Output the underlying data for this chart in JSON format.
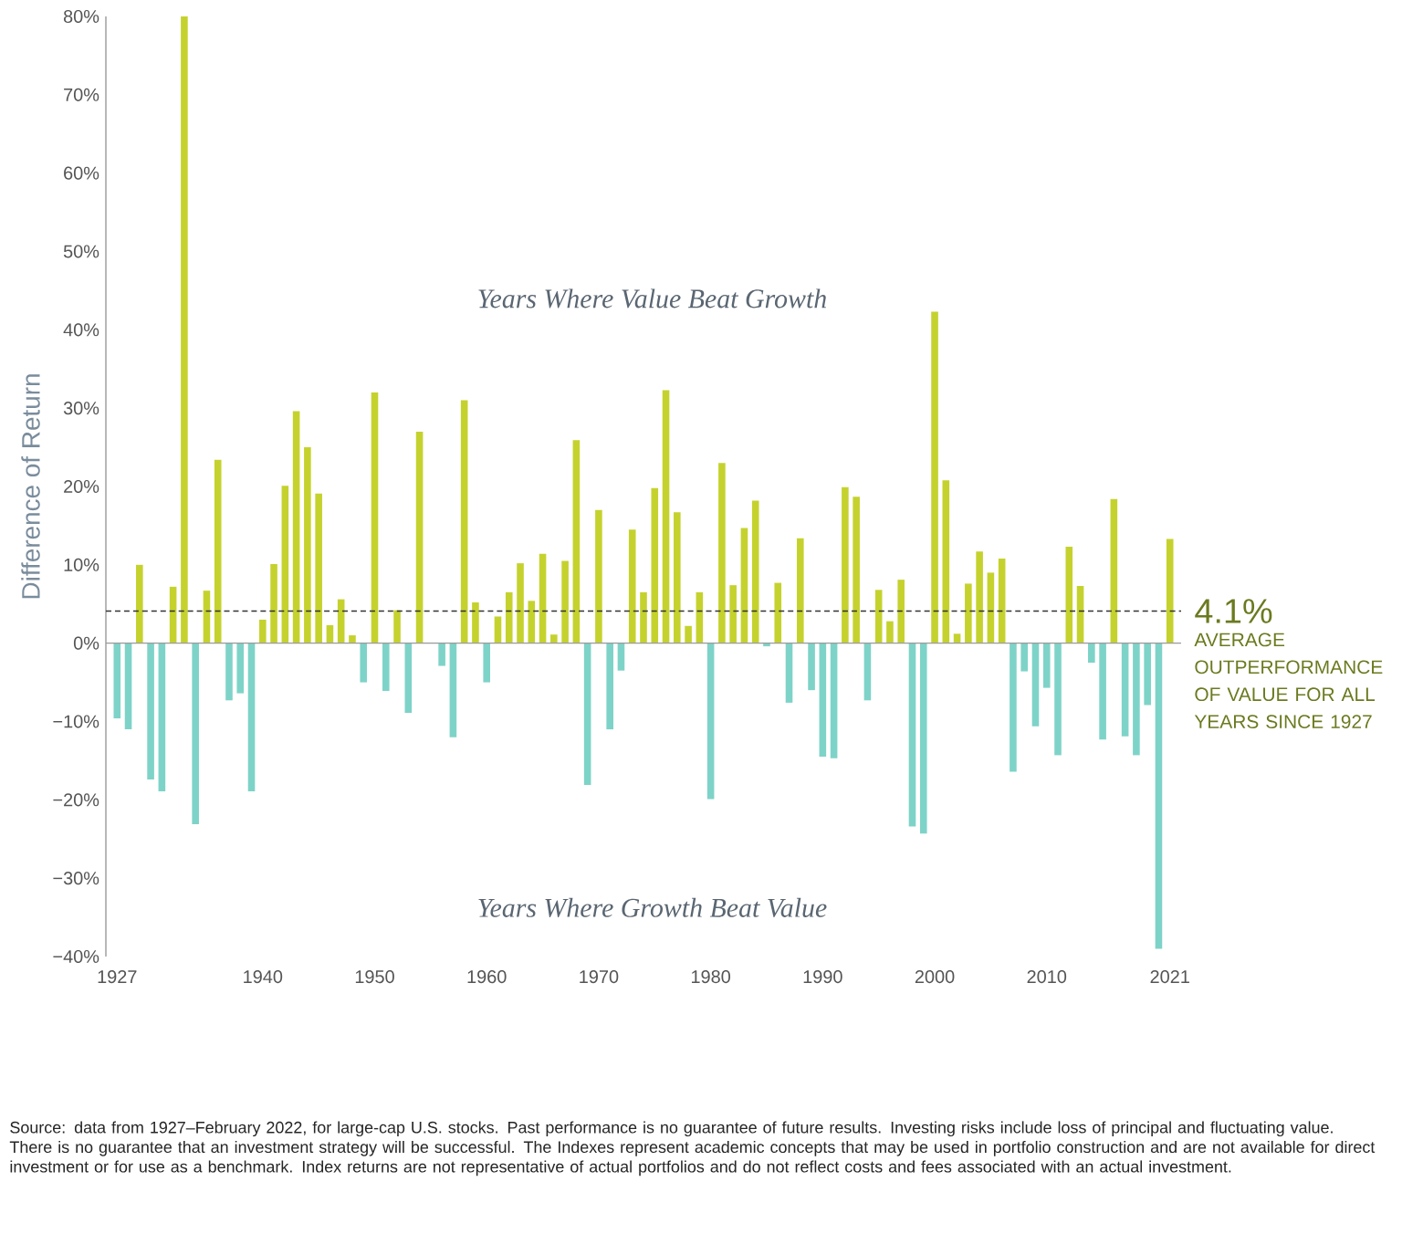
{
  "chart_data": {
    "type": "bar",
    "ylabel": "Difference of Return",
    "x": [
      1927,
      1928,
      1929,
      1930,
      1931,
      1932,
      1933,
      1934,
      1935,
      1936,
      1937,
      1938,
      1939,
      1940,
      1941,
      1942,
      1943,
      1944,
      1945,
      1946,
      1947,
      1948,
      1949,
      1950,
      1951,
      1952,
      1953,
      1954,
      1955,
      1956,
      1957,
      1958,
      1959,
      1960,
      1961,
      1962,
      1963,
      1964,
      1965,
      1966,
      1967,
      1968,
      1969,
      1970,
      1971,
      1972,
      1973,
      1974,
      1975,
      1976,
      1977,
      1978,
      1979,
      1980,
      1981,
      1982,
      1983,
      1984,
      1985,
      1986,
      1987,
      1988,
      1989,
      1990,
      1991,
      1992,
      1993,
      1994,
      1995,
      1996,
      1997,
      1998,
      1999,
      2000,
      2001,
      2002,
      2003,
      2004,
      2005,
      2006,
      2007,
      2008,
      2009,
      2010,
      2011,
      2012,
      2013,
      2014,
      2015,
      2016,
      2017,
      2018,
      2019,
      2020,
      2021
    ],
    "values": [
      -9.6,
      -11.0,
      10.0,
      -17.4,
      -18.9,
      7.2,
      80.0,
      -23.1,
      6.7,
      23.4,
      -7.3,
      -6.4,
      -18.9,
      3.0,
      10.1,
      20.1,
      29.6,
      25.0,
      19.1,
      2.3,
      5.6,
      1.0,
      -5.0,
      32.0,
      -6.1,
      4.2,
      -8.9,
      27.0,
      0,
      -2.9,
      -12.0,
      31.0,
      5.2,
      -5.0,
      3.4,
      6.5,
      10.2,
      5.4,
      11.4,
      1.1,
      10.5,
      25.9,
      -18.1,
      17.0,
      -11.0,
      -3.5,
      14.5,
      6.5,
      19.8,
      32.3,
      16.7,
      2.2,
      6.5,
      -19.9,
      23.0,
      7.4,
      14.7,
      18.2,
      -0.4,
      7.7,
      -7.6,
      13.4,
      -6.0,
      -14.5,
      -14.7,
      19.9,
      18.7,
      -7.3,
      6.8,
      2.8,
      8.1,
      -23.4,
      -24.3,
      42.3,
      20.8,
      1.2,
      7.6,
      11.7,
      9.0,
      10.8,
      -16.4,
      -3.6,
      -10.6,
      -5.7,
      -14.3,
      12.3,
      7.3,
      -2.5,
      -12.3,
      18.4,
      -11.9,
      -14.3,
      -7.9,
      -39.0,
      13.3
    ],
    "colors": [
      "#7ed3c8",
      "#7ed3c8",
      "#c5d22e",
      "#7ed3c8",
      "#7ed3c8",
      "#c5d22e",
      "#c5d22e",
      "#7ed3c8",
      "#c5d22e",
      "#c5d22e",
      "#7ed3c8",
      "#7ed3c8",
      "#7ed3c8",
      "#c5d22e",
      "#c5d22e",
      "#c5d22e",
      "#c5d22e",
      "#c5d22e",
      "#c5d22e",
      "#c5d22e",
      "#c5d22e",
      "#c5d22e",
      "#7ed3c8",
      "#c5d22e",
      "#7ed3c8",
      "#c5d22e",
      "#7ed3c8",
      "#c5d22e",
      "#c5d22e",
      "#7ed3c8",
      "#7ed3c8",
      "#c5d22e",
      "#c5d22e",
      "#7ed3c8",
      "#c5d22e",
      "#c5d22e",
      "#c5d22e",
      "#c5d22e",
      "#c5d22e",
      "#c5d22e",
      "#c5d22e",
      "#c5d22e",
      "#7ed3c8",
      "#c5d22e",
      "#7ed3c8",
      "#7ed3c8",
      "#c5d22e",
      "#c5d22e",
      "#c5d22e",
      "#c5d22e",
      "#c5d22e",
      "#c5d22e",
      "#c5d22e",
      "#7ed3c8",
      "#c5d22e",
      "#c5d22e",
      "#c5d22e",
      "#c5d22e",
      "#7ed3c8",
      "#c5d22e",
      "#7ed3c8",
      "#c5d22e",
      "#7ed3c8",
      "#7ed3c8",
      "#7ed3c8",
      "#c5d22e",
      "#c5d22e",
      "#7ed3c8",
      "#c5d22e",
      "#c5d22e",
      "#c5d22e",
      "#7ed3c8",
      "#7ed3c8",
      "#c5d22e",
      "#c5d22e",
      "#c5d22e",
      "#c5d22e",
      "#c5d22e",
      "#c5d22e",
      "#c5d22e",
      "#7ed3c8",
      "#7ed3c8",
      "#7ed3c8",
      "#7ed3c8",
      "#7ed3c8",
      "#c5d22e",
      "#c5d22e",
      "#7ed3c8",
      "#7ed3c8",
      "#c5d22e",
      "#7ed3c8",
      "#7ed3c8",
      "#7ed3c8",
      "#7ed3c8",
      "#c5d22e"
    ],
    "xlim": [
      1926,
      2022
    ],
    "xticks": [
      1927,
      1940,
      1950,
      1960,
      1970,
      1980,
      1990,
      2000,
      2010,
      2021
    ],
    "ylim": [
      -40,
      80
    ],
    "yticks": [
      {
        "value": -40,
        "label": "−40%"
      },
      {
        "value": -30,
        "label": "−30%"
      },
      {
        "value": -20,
        "label": "−20%"
      },
      {
        "value": -10,
        "label": "−10%"
      },
      {
        "value": 0,
        "label": "0%"
      },
      {
        "value": 10,
        "label": "10%"
      },
      {
        "value": 20,
        "label": "20%"
      },
      {
        "value": 30,
        "label": "30%"
      },
      {
        "value": 40,
        "label": "40%"
      },
      {
        "value": 50,
        "label": "50%"
      },
      {
        "value": 60,
        "label": "60%"
      },
      {
        "value": 70,
        "label": "70%"
      },
      {
        "value": 80,
        "label": "80%"
      }
    ],
    "ref_lines": [
      {
        "axis": "y",
        "value": 0,
        "color": "#9a9a9a"
      },
      {
        "axis": "y",
        "value": 4.1,
        "label": "4.1%",
        "color": "#333333",
        "line_style": "dashed"
      }
    ],
    "annotations": [
      "Years Where Value Beat Growth",
      "Years Where Growth Beat Value",
      "AVERAGE OUTPERFORMANCE OF VALUE FOR ALL YEARS SINCE 1927",
      "Source: data from 1927–February 2022, for large-cap U.S. stocks. Past performance is no guarantee of future results. Investing risks include loss of principal and fluctuating value. There is no guarantee that an investment strategy will be successful. The Indexes represent academic concepts that may be used in portfolio construction and are not available for direct investment or for use as a benchmark. Index returns are not representative of actual portfolios and do not reflect costs and fees associated with an actual investment."
    ]
  }
}
